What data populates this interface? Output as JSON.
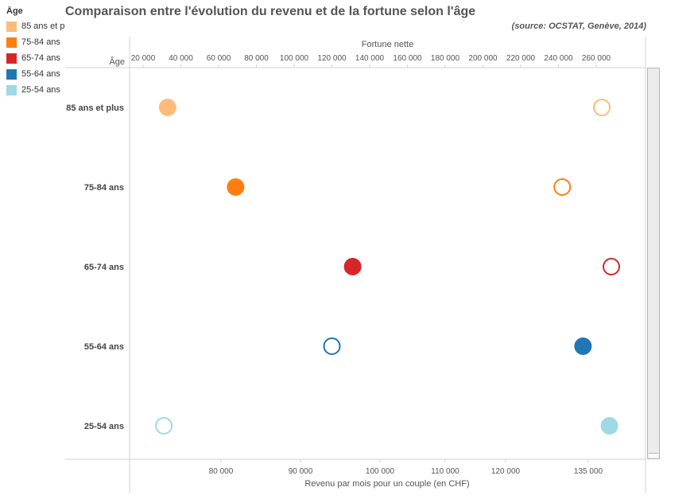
{
  "title": "Comparaison entre l'évolution du revenu et de la fortune selon l'âge",
  "source": "(source: OCSTAT, Genève, 2014)",
  "legend": {
    "title": "Âge",
    "items": [
      {
        "label": "85 ans et p",
        "color": "#ffbb78"
      },
      {
        "label": "75-84 ans",
        "color": "#ff7f0e"
      },
      {
        "label": "65-74 ans",
        "color": "#d62728"
      },
      {
        "label": "55-64 ans",
        "color": "#1f77b4"
      },
      {
        "label": "25-54 ans",
        "color": "#9edae5"
      }
    ]
  },
  "chart_data": {
    "type": "scatter",
    "row_header": "Âge",
    "categories": [
      "85 ans et plus",
      "75-84 ans",
      "65-74 ans",
      "55-64 ans",
      "25-54 ans"
    ],
    "colors": [
      "#ffbb78",
      "#ff7f0e",
      "#d62728",
      "#1f77b4",
      "#9edae5"
    ],
    "top_axis": {
      "label": "Fortune nette",
      "ticks": [
        20000,
        40000,
        60000,
        80000,
        100000,
        120000,
        140000,
        160000,
        180000,
        200000,
        220000,
        240000,
        260000
      ],
      "tick_labels": [
        "20 000",
        "40 000",
        "60 000",
        "80 000",
        "100 000",
        "120 000",
        "140 000",
        "160 000",
        "180 000",
        "200 000",
        "220 000",
        "240 000",
        "260 000"
      ]
    },
    "bottom_axis": {
      "label": "Revenu par mois pour un couple (en CHF)",
      "ticks": [
        80000,
        90000,
        100000,
        110000,
        120000,
        135000
      ],
      "tick_labels": [
        "80 000",
        "90 000",
        "100 000",
        "110 000",
        "120 000",
        "135 000"
      ]
    },
    "series": [
      {
        "marker": "filled",
        "values": [
          33000,
          69000,
          131000,
          253000,
          267000
        ]
      },
      {
        "marker": "hollow",
        "values": [
          263000,
          242000,
          268000,
          120000,
          31000
        ]
      }
    ],
    "grid": false
  }
}
